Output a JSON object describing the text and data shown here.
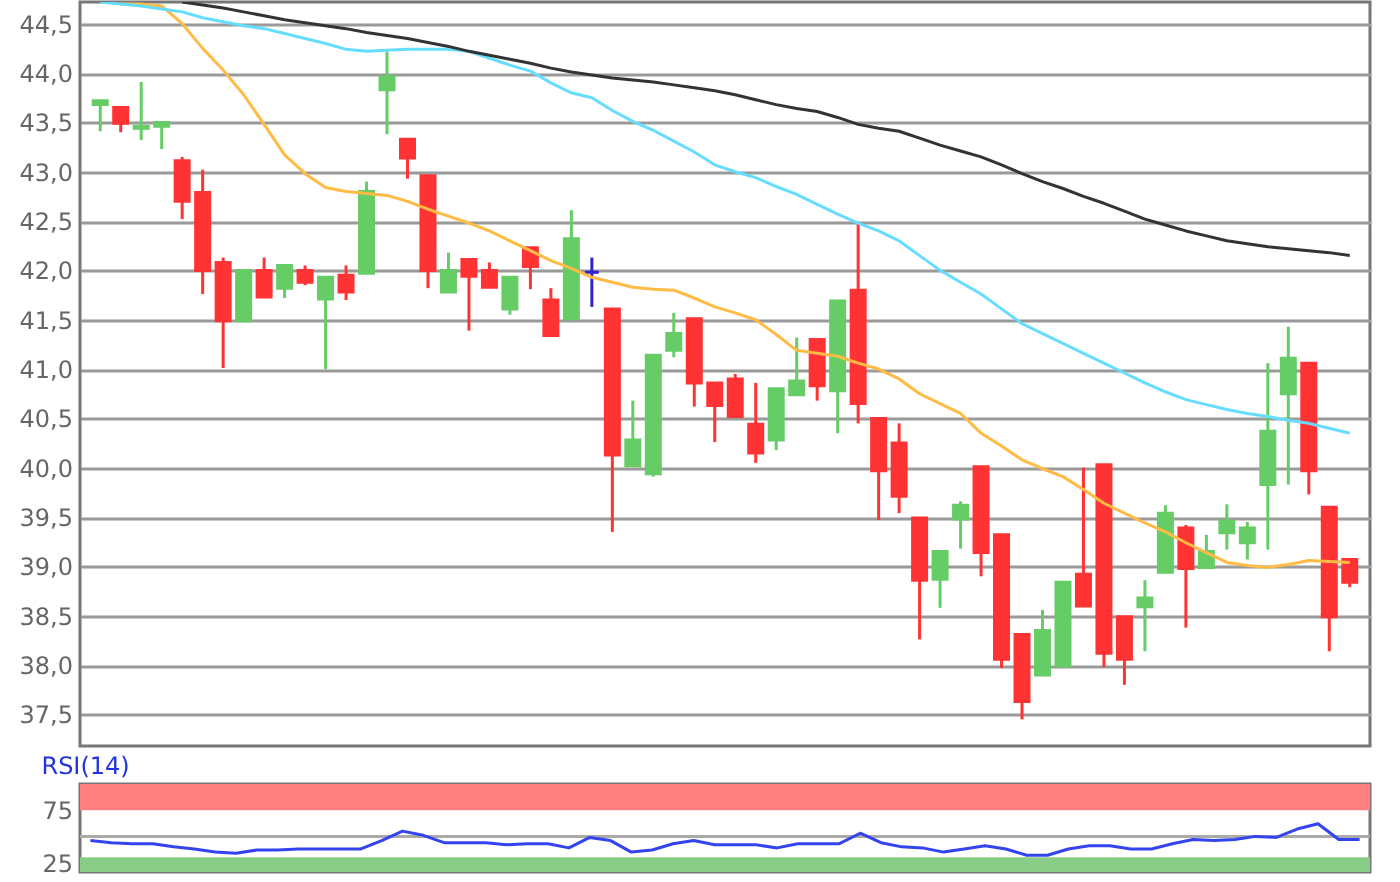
{
  "chart_data": [
    {
      "type": "candlestick",
      "categories": [
        null,
        null,
        null,
        null,
        null,
        null,
        null,
        null,
        null,
        null,
        null,
        null,
        null,
        null,
        null,
        null,
        null,
        null,
        null,
        null,
        null,
        null,
        null,
        null,
        null,
        null,
        null,
        null,
        null,
        null,
        null,
        null,
        null,
        null,
        null,
        null,
        null,
        null,
        null,
        null,
        null,
        null,
        null,
        null,
        null,
        null,
        null,
        null,
        null,
        null,
        null,
        null,
        null,
        null,
        null,
        null,
        null,
        null,
        null,
        null,
        null,
        null
      ],
      "ohlc": [
        [
          43.68,
          43.72,
          43.41,
          43.72
        ],
        [
          43.65,
          43.65,
          43.4,
          43.49
        ],
        [
          43.44,
          43.91,
          43.32,
          43.46
        ],
        [
          43.46,
          43.5,
          43.23,
          43.5
        ],
        [
          43.11,
          43.15,
          42.52,
          42.7
        ],
        [
          42.79,
          43.02,
          41.76,
          42.0
        ],
        [
          42.08,
          42.13,
          41.01,
          41.49
        ],
        [
          41.49,
          42.0,
          41.49,
          42.0
        ],
        [
          42.0,
          42.13,
          41.73,
          41.73
        ],
        [
          41.82,
          42.05,
          41.72,
          42.05
        ],
        [
          42.0,
          42.05,
          41.85,
          41.88
        ],
        [
          41.71,
          41.93,
          41.0,
          41.93
        ],
        [
          41.95,
          42.05,
          41.7,
          41.78
        ],
        [
          41.97,
          42.9,
          41.97,
          42.8
        ],
        [
          43.83,
          44.22,
          43.38,
          43.96
        ],
        [
          43.33,
          43.33,
          42.93,
          43.14
        ],
        [
          42.96,
          42.96,
          41.82,
          42.0
        ],
        [
          41.78,
          42.18,
          41.78,
          42.0
        ],
        [
          42.11,
          42.11,
          41.39,
          41.94
        ],
        [
          42.0,
          42.08,
          41.83,
          41.83
        ],
        [
          41.61,
          41.93,
          41.55,
          41.93
        ],
        [
          42.23,
          42.23,
          41.81,
          42.04
        ],
        [
          41.7,
          41.82,
          41.34,
          41.34
        ],
        [
          41.51,
          42.61,
          41.51,
          42.32
        ],
        [
          41.98,
          42.13,
          41.63,
          41.98
        ],
        [
          41.61,
          41.61,
          39.35,
          40.13
        ],
        [
          40.02,
          40.68,
          40.02,
          40.28
        ],
        [
          39.94,
          41.14,
          39.91,
          41.14
        ],
        [
          41.19,
          41.57,
          41.12,
          41.36
        ],
        [
          41.51,
          41.51,
          40.62,
          40.86
        ],
        [
          40.86,
          40.86,
          40.26,
          40.63
        ],
        [
          40.9,
          40.95,
          40.52,
          40.52
        ],
        [
          40.44,
          40.86,
          40.05,
          40.15
        ],
        [
          40.28,
          40.8,
          40.18,
          40.8
        ],
        [
          40.74,
          41.32,
          40.74,
          40.88
        ],
        [
          41.3,
          41.3,
          40.68,
          40.83
        ],
        [
          40.78,
          41.69,
          40.35,
          41.69
        ],
        [
          41.8,
          42.48,
          40.45,
          40.65
        ],
        [
          40.5,
          40.5,
          39.47,
          39.97
        ],
        [
          40.25,
          40.45,
          39.54,
          39.71
        ],
        [
          39.49,
          39.49,
          38.26,
          38.86
        ],
        [
          38.87,
          39.15,
          38.58,
          39.15
        ],
        [
          39.48,
          39.66,
          39.18,
          39.62
        ],
        [
          40.01,
          40.01,
          38.9,
          39.14
        ],
        [
          39.32,
          39.32,
          37.97,
          38.06
        ],
        [
          38.31,
          38.31,
          37.45,
          37.63
        ],
        [
          37.9,
          38.56,
          37.9,
          38.35
        ],
        [
          37.99,
          38.84,
          37.99,
          38.84
        ],
        [
          38.92,
          40.0,
          38.6,
          38.6
        ],
        [
          40.03,
          40.03,
          37.98,
          38.12
        ],
        [
          38.49,
          38.49,
          37.8,
          38.06
        ],
        [
          38.59,
          38.86,
          38.14,
          38.68
        ],
        [
          38.94,
          39.62,
          38.94,
          39.54
        ],
        [
          39.39,
          39.42,
          38.38,
          38.98
        ],
        [
          38.99,
          39.32,
          38.99,
          39.15
        ],
        [
          39.34,
          39.63,
          39.17,
          39.46
        ],
        [
          39.24,
          39.45,
          39.07,
          39.39
        ],
        [
          39.83,
          41.06,
          39.17,
          40.37
        ],
        [
          40.75,
          41.43,
          39.83,
          41.11
        ],
        [
          41.06,
          41.06,
          39.73,
          39.97
        ],
        [
          39.6,
          39.6,
          38.14,
          38.49
        ],
        [
          39.07,
          39.07,
          38.79,
          38.84
        ]
      ],
      "colors": [
        "#66cc66",
        "#ff3333",
        "#66cc66",
        "#66cc66",
        "#ff3333",
        "#ff3333",
        "#ff3333",
        "#66cc66",
        "#ff3333",
        "#66cc66",
        "#ff3333",
        "#66cc66",
        "#ff3333",
        "#66cc66",
        "#66cc66",
        "#ff3333",
        "#ff3333",
        "#66cc66",
        "#ff3333",
        "#ff3333",
        "#66cc66",
        "#ff3333",
        "#ff3333",
        "#66cc66",
        "#3322cc",
        "#ff3333",
        "#66cc66",
        "#66cc66",
        "#66cc66",
        "#ff3333",
        "#ff3333",
        "#ff3333",
        "#ff3333",
        "#66cc66",
        "#66cc66",
        "#ff3333",
        "#66cc66",
        "#ff3333",
        "#ff3333",
        "#ff3333",
        "#ff3333",
        "#66cc66",
        "#66cc66",
        "#ff3333",
        "#ff3333",
        "#ff3333",
        "#66cc66",
        "#66cc66",
        "#ff3333",
        "#ff3333",
        "#ff3333",
        "#66cc66",
        "#66cc66",
        "#ff3333",
        "#66cc66",
        "#66cc66",
        "#66cc66",
        "#66cc66",
        "#66cc66",
        "#ff3333",
        "#ff3333",
        "#ff3333"
      ],
      "series": [
        {
          "type": "line",
          "color": "#ffbb44",
          "values": [
            null,
            44.7,
            44.7,
            44.68,
            44.5,
            44.25,
            44.03,
            43.78,
            43.48,
            43.17,
            42.98,
            42.84,
            42.8,
            42.78,
            42.76,
            42.7,
            42.62,
            42.55,
            42.48,
            42.4,
            42.3,
            42.2,
            42.1,
            42.02,
            41.93,
            41.88,
            41.83,
            41.81,
            41.8,
            41.72,
            41.63,
            41.57,
            41.5,
            41.35,
            41.19,
            41.16,
            41.13,
            41.06,
            41.0,
            40.9,
            40.75,
            40.65,
            40.55,
            40.35,
            40.22,
            40.08,
            39.99,
            39.91,
            39.78,
            39.64,
            39.54,
            39.44,
            39.35,
            39.24,
            39.14,
            39.04,
            39.01,
            38.99,
            39.02,
            39.06,
            39.05,
            39.04
          ]
        },
        {
          "type": "line",
          "color": "#66ddff",
          "values": [
            44.72,
            44.7,
            44.68,
            44.65,
            44.62,
            44.56,
            44.52,
            44.48,
            44.45,
            44.4,
            44.35,
            44.3,
            44.24,
            44.22,
            44.23,
            44.24,
            44.24,
            44.24,
            44.22,
            44.15,
            44.08,
            44.02,
            43.9,
            43.8,
            43.75,
            43.62,
            43.51,
            43.42,
            43.31,
            43.2,
            43.07,
            43.0,
            42.94,
            42.85,
            42.77,
            42.67,
            42.57,
            42.48,
            42.4,
            42.3,
            42.15,
            42.0,
            41.88,
            41.76,
            41.61,
            41.46,
            41.36,
            41.26,
            41.16,
            41.06,
            40.96,
            40.86,
            40.77,
            40.69,
            40.64,
            40.59,
            40.55,
            40.52,
            40.48,
            40.45,
            40.4,
            40.35
          ]
        },
        {
          "type": "line",
          "color": "#333333",
          "values": [
            null,
            null,
            null,
            null,
            44.72,
            44.69,
            44.66,
            44.62,
            44.58,
            44.54,
            44.51,
            44.48,
            44.45,
            44.41,
            44.38,
            44.35,
            44.31,
            44.27,
            44.22,
            44.18,
            44.14,
            44.1,
            44.05,
            44.01,
            43.98,
            43.95,
            43.93,
            43.91,
            43.88,
            43.85,
            43.82,
            43.78,
            43.73,
            43.68,
            43.64,
            43.61,
            43.55,
            43.48,
            43.44,
            43.41,
            43.34,
            43.27,
            43.21,
            43.15,
            43.07,
            42.98,
            42.9,
            42.83,
            42.75,
            42.68,
            42.6,
            42.52,
            42.46,
            42.4,
            42.35,
            42.3,
            42.27,
            42.24,
            42.22,
            42.2,
            42.18,
            42.15
          ]
        }
      ],
      "ylim": [
        37.18,
        44.72
      ],
      "yticks": [
        {
          "value": 37.5,
          "label": "37,5"
        },
        {
          "value": 38,
          "label": "38,0"
        },
        {
          "value": 38.5,
          "label": "38,5"
        },
        {
          "value": 39,
          "label": "39,0"
        },
        {
          "value": 39.5,
          "label": "39,5"
        },
        {
          "value": 40,
          "label": "40,0"
        },
        {
          "value": 40.5,
          "label": "40,5"
        },
        {
          "value": 41,
          "label": "41,0"
        },
        {
          "value": 41.5,
          "label": "41,5"
        },
        {
          "value": 42,
          "label": "42,0"
        },
        {
          "value": 42.5,
          "label": "42,5"
        },
        {
          "value": 43,
          "label": "43,0"
        },
        {
          "value": 43.5,
          "label": "43,5"
        },
        {
          "value": 44,
          "label": "44,0"
        },
        {
          "value": 44.5,
          "label": "44,5"
        }
      ],
      "grid": "y",
      "tick_labels": "y"
    },
    {
      "type": "line",
      "title": "RSI(14)",
      "categories": [
        null,
        null,
        null,
        null,
        null,
        null,
        null,
        null,
        null,
        null,
        null,
        null,
        null,
        null,
        null,
        null,
        null,
        null,
        null,
        null,
        null,
        null,
        null,
        null,
        null,
        null,
        null,
        null,
        null,
        null,
        null,
        null,
        null,
        null,
        null,
        null,
        null,
        null,
        null,
        null,
        null,
        null,
        null,
        null,
        null,
        null,
        null,
        null,
        null,
        null,
        null,
        null,
        null,
        null,
        null,
        null,
        null,
        null,
        null,
        null,
        null,
        null
      ],
      "series": [
        {
          "color": "#3344ee",
          "values": [
            46,
            44,
            43,
            43,
            40,
            38,
            35,
            34,
            37,
            37,
            38,
            38,
            38,
            38,
            46,
            55,
            51,
            44,
            44,
            44,
            42,
            43,
            43,
            39,
            49,
            46,
            35,
            37,
            43,
            46,
            42,
            42,
            42,
            39,
            43,
            43,
            43,
            53,
            44,
            40,
            39,
            35,
            38,
            41,
            38,
            32,
            32,
            38,
            41,
            41,
            38,
            38,
            43,
            47,
            46,
            47,
            50,
            49,
            57,
            62,
            47,
            47
          ]
        }
      ],
      "ylim": [
        16,
        100
      ],
      "yticks": [
        25,
        75
      ],
      "bands": [
        {
          "axis": "y",
          "from": 75,
          "to": 100,
          "color": "#ff8080"
        },
        {
          "axis": "y",
          "from": 16,
          "to": 30,
          "color": "#88cc88"
        }
      ],
      "ref_lines": [
        {
          "axis": "y",
          "value": 50,
          "color": "#aaaaaa"
        }
      ],
      "tick_labels": "y"
    }
  ]
}
